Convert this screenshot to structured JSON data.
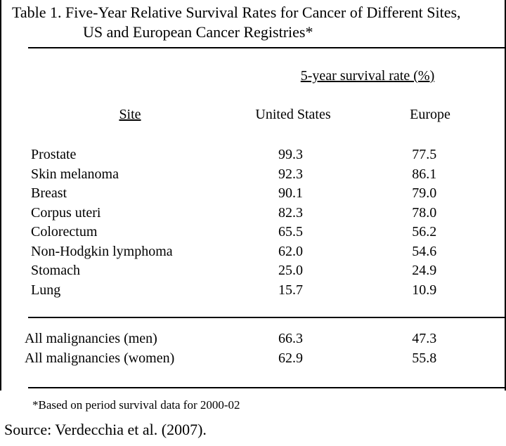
{
  "table": {
    "title_line1": "Table 1. Five-Year Relative Survival Rates for Cancer of Different Sites,",
    "title_line2": "US and European Cancer Registries*",
    "group_header": "5-year survival rate (%)",
    "columns": {
      "site": "Site",
      "us": "United States",
      "europe": "Europe"
    },
    "rows": [
      {
        "site": "Prostate",
        "us": "99.3",
        "europe": "77.5"
      },
      {
        "site": "Skin melanoma",
        "us": "92.3",
        "europe": "86.1"
      },
      {
        "site": "Breast",
        "us": "90.1",
        "europe": "79.0"
      },
      {
        "site": "Corpus uteri",
        "us": "82.3",
        "europe": "78.0"
      },
      {
        "site": "Colorectum",
        "us": "65.5",
        "europe": "56.2"
      },
      {
        "site": "Non-Hodgkin lymphoma",
        "us": "62.0",
        "europe": "54.6"
      },
      {
        "site": "Stomach",
        "us": "25.0",
        "europe": "24.9"
      },
      {
        "site": "Lung",
        "us": "15.7",
        "europe": "10.9"
      }
    ],
    "summary_rows": [
      {
        "site": "All malignancies (men)",
        "us": "66.3",
        "europe": "47.3"
      },
      {
        "site": "All malignancies (women)",
        "us": "62.9",
        "europe": "55.8"
      }
    ],
    "footnote": "*Based on period survival data for 2000-02",
    "source": "Source: Verdecchia et al. (2007)."
  },
  "colors": {
    "ink": "#000000",
    "background": "#ffffff"
  }
}
